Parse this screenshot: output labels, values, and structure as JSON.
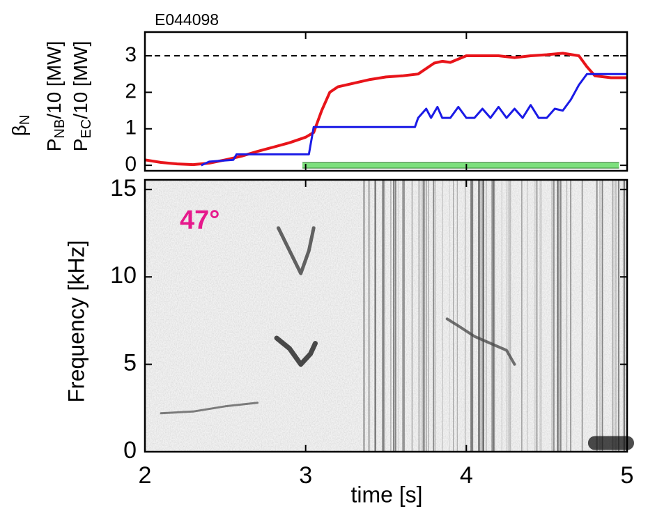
{
  "chart_data": [
    {
      "type": "line",
      "title": "E044098",
      "ylabel": [
        {
          "main": "β",
          "sub": "N"
        },
        {
          "main": "P",
          "sub": "NB",
          "rest": "/10 [MW]"
        },
        {
          "main": "P",
          "sub": "EC",
          "rest": "/10 [MW]"
        }
      ],
      "xlim": [
        2,
        5
      ],
      "ylim": [
        -0.15,
        3.65
      ],
      "yticks": [
        0,
        1,
        2,
        3
      ],
      "hline": 3,
      "series": [
        {
          "color": "#e8141a",
          "linewidth": 4,
          "x": [
            2.0,
            2.1,
            2.2,
            2.3,
            2.4,
            2.5,
            2.6,
            2.7,
            2.8,
            2.9,
            3.0,
            3.05,
            3.1,
            3.15,
            3.2,
            3.3,
            3.4,
            3.5,
            3.6,
            3.7,
            3.8,
            3.85,
            3.9,
            4.0,
            4.1,
            4.2,
            4.3,
            4.4,
            4.5,
            4.6,
            4.7,
            4.75,
            4.8,
            4.9,
            5.0
          ],
          "values": [
            0.15,
            0.08,
            0.04,
            0.02,
            0.06,
            0.15,
            0.25,
            0.38,
            0.5,
            0.62,
            0.77,
            0.9,
            1.5,
            2.0,
            2.15,
            2.25,
            2.35,
            2.42,
            2.45,
            2.5,
            2.8,
            2.85,
            2.82,
            3.0,
            3.0,
            3.0,
            2.95,
            3.0,
            3.03,
            3.07,
            3.0,
            2.7,
            2.45,
            2.4,
            2.4
          ]
        },
        {
          "color": "#1a1ae6",
          "linewidth": 3,
          "x": [
            2.35,
            2.4,
            2.55,
            2.57,
            3.02,
            3.05,
            3.68,
            3.7,
            3.75,
            3.78,
            3.82,
            3.85,
            3.9,
            3.95,
            4.0,
            4.05,
            4.1,
            4.15,
            4.2,
            4.25,
            4.3,
            4.35,
            4.4,
            4.45,
            4.5,
            4.55,
            4.6,
            4.65,
            4.7,
            4.75,
            5.0
          ],
          "values": [
            0,
            0.1,
            0.15,
            0.3,
            0.3,
            1.05,
            1.05,
            1.3,
            1.55,
            1.3,
            1.6,
            1.3,
            1.3,
            1.6,
            1.3,
            1.3,
            1.55,
            1.3,
            1.6,
            1.3,
            1.55,
            1.3,
            1.65,
            1.3,
            1.3,
            1.55,
            1.5,
            1.8,
            2.2,
            2.5,
            2.5
          ]
        },
        {
          "color": "#7de07d",
          "linewidth": 7,
          "x": [
            2.98,
            4.95
          ],
          "values": [
            0,
            0
          ]
        }
      ]
    },
    {
      "type": "spectrogram",
      "annotation": "47°",
      "annotation_color": "#e6198c",
      "xlabel": "time [s]",
      "ylabel": "Frequency [kHz]",
      "xlim": [
        2,
        5
      ],
      "xticks": [
        2,
        3,
        4,
        5
      ],
      "ylim": [
        0,
        15.55
      ],
      "yticks": [
        0,
        5,
        10,
        15
      ],
      "series": [
        {
          "color": "#555555",
          "linewidth": 3,
          "x": [
            2.1,
            2.3,
            2.5,
            2.7
          ],
          "values": [
            2.2,
            2.3,
            2.6,
            2.8
          ]
        },
        {
          "color": "#333333",
          "linewidth": 5,
          "x": [
            2.83,
            2.9,
            2.97,
            3.02,
            3.05
          ],
          "values": [
            12.8,
            11.5,
            10.2,
            11.5,
            12.8
          ]
        },
        {
          "color": "#111111",
          "linewidth": 7,
          "x": [
            2.82,
            2.9,
            2.97,
            3.03,
            3.06
          ],
          "values": [
            6.5,
            5.9,
            5.0,
            5.6,
            6.2
          ]
        },
        {
          "color": "#444444",
          "linewidth": 4,
          "x": [
            3.88,
            3.95,
            4.05,
            4.15,
            4.25,
            4.3
          ],
          "values": [
            7.6,
            7.2,
            6.6,
            6.2,
            5.8,
            5.0
          ]
        },
        {
          "color": "#111111",
          "linewidth": 20,
          "x": [
            4.8,
            5.0
          ],
          "values": [
            0.5,
            0.5
          ]
        }
      ]
    }
  ]
}
